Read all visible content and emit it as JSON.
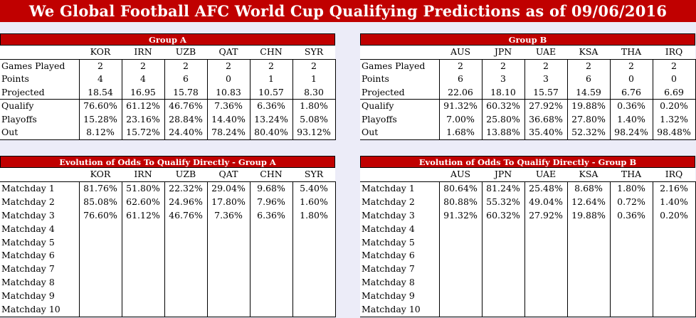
{
  "title": "We Global Football AFC World Cup Qualifying Predictions as of 09/06/2016",
  "groupA": {
    "header": "Group A",
    "teams": [
      "KOR",
      "IRN",
      "UZB",
      "QAT",
      "CHN",
      "SYR"
    ],
    "rows": [
      {
        "label": "Games Played",
        "values": [
          "2",
          "2",
          "2",
          "2",
          "2",
          "2"
        ]
      },
      {
        "label": "Points",
        "values": [
          "4",
          "4",
          "6",
          "0",
          "1",
          "1"
        ]
      },
      {
        "label": "Projected",
        "values": [
          "18.54",
          "16.95",
          "15.78",
          "10.83",
          "10.57",
          "8.30"
        ]
      },
      {
        "label": "Qualify",
        "values": [
          "76.60%",
          "61.12%",
          "46.76%",
          "7.36%",
          "6.36%",
          "1.80%"
        ]
      },
      {
        "label": "Playoffs",
        "values": [
          "15.28%",
          "23.16%",
          "28.84%",
          "14.40%",
          "13.24%",
          "5.08%"
        ]
      },
      {
        "label": "Out",
        "values": [
          "8.12%",
          "15.72%",
          "24.40%",
          "78.24%",
          "80.40%",
          "93.12%"
        ]
      }
    ]
  },
  "groupB": {
    "header": "Group B",
    "teams": [
      "AUS",
      "JPN",
      "UAE",
      "KSA",
      "THA",
      "IRQ"
    ],
    "rows": [
      {
        "label": "Games Played",
        "values": [
          "2",
          "2",
          "2",
          "2",
          "2",
          "2"
        ]
      },
      {
        "label": "Points",
        "values": [
          "6",
          "3",
          "3",
          "6",
          "0",
          "0"
        ]
      },
      {
        "label": "Projected",
        "values": [
          "22.06",
          "18.10",
          "15.57",
          "14.59",
          "6.76",
          "6.69"
        ]
      },
      {
        "label": "Qualify",
        "values": [
          "91.32%",
          "60.32%",
          "27.92%",
          "19.88%",
          "0.36%",
          "0.20%"
        ]
      },
      {
        "label": "Playoffs",
        "values": [
          "7.00%",
          "25.80%",
          "36.68%",
          "27.80%",
          "1.40%",
          "1.32%"
        ]
      },
      {
        "label": "Out",
        "values": [
          "1.68%",
          "13.88%",
          "35.40%",
          "52.32%",
          "98.24%",
          "98.48%"
        ]
      }
    ]
  },
  "evoA": {
    "header": "Evolution of Odds To Qualify Directly - Group A",
    "teams": [
      "KOR",
      "IRN",
      "UZB",
      "QAT",
      "CHN",
      "SYR"
    ],
    "rows": [
      {
        "label": "Matchday 1",
        "values": [
          "81.76%",
          "51.80%",
          "22.32%",
          "29.04%",
          "9.68%",
          "5.40%"
        ]
      },
      {
        "label": "Matchday 2",
        "values": [
          "85.08%",
          "62.60%",
          "24.96%",
          "17.80%",
          "7.96%",
          "1.60%"
        ]
      },
      {
        "label": "Matchday 3",
        "values": [
          "76.60%",
          "61.12%",
          "46.76%",
          "7.36%",
          "6.36%",
          "1.80%"
        ]
      },
      {
        "label": "Matchday 4",
        "values": [
          "",
          "",
          "",
          "",
          "",
          ""
        ]
      },
      {
        "label": "Matchday 5",
        "values": [
          "",
          "",
          "",
          "",
          "",
          ""
        ]
      },
      {
        "label": "Matchday 6",
        "values": [
          "",
          "",
          "",
          "",
          "",
          ""
        ]
      },
      {
        "label": "Matchday 7",
        "values": [
          "",
          "",
          "",
          "",
          "",
          ""
        ]
      },
      {
        "label": "Matchday 8",
        "values": [
          "",
          "",
          "",
          "",
          "",
          ""
        ]
      },
      {
        "label": "Matchday 9",
        "values": [
          "",
          "",
          "",
          "",
          "",
          ""
        ]
      },
      {
        "label": "Matchday 10",
        "values": [
          "",
          "",
          "",
          "",
          "",
          ""
        ]
      }
    ]
  },
  "evoB": {
    "header": "Evolution of Odds To Qualify Directly - Group B",
    "teams": [
      "AUS",
      "JPN",
      "UAE",
      "KSA",
      "THA",
      "IRQ"
    ],
    "rows": [
      {
        "label": "Matchday 1",
        "values": [
          "80.64%",
          "81.24%",
          "25.48%",
          "8.68%",
          "1.80%",
          "2.16%"
        ]
      },
      {
        "label": "Matchday 2",
        "values": [
          "80.88%",
          "55.32%",
          "49.04%",
          "12.64%",
          "0.72%",
          "1.40%"
        ]
      },
      {
        "label": "Matchday 3",
        "values": [
          "91.32%",
          "60.32%",
          "27.92%",
          "19.88%",
          "0.36%",
          "0.20%"
        ]
      },
      {
        "label": "Matchday 4",
        "values": [
          "",
          "",
          "",
          "",
          "",
          ""
        ]
      },
      {
        "label": "Matchday 5",
        "values": [
          "",
          "",
          "",
          "",
          "",
          ""
        ]
      },
      {
        "label": "Matchday 6",
        "values": [
          "",
          "",
          "",
          "",
          "",
          ""
        ]
      },
      {
        "label": "Matchday 7",
        "values": [
          "",
          "",
          "",
          "",
          "",
          ""
        ]
      },
      {
        "label": "Matchday 8",
        "values": [
          "",
          "",
          "",
          "",
          "",
          ""
        ]
      },
      {
        "label": "Matchday 9",
        "values": [
          "",
          "",
          "",
          "",
          "",
          ""
        ]
      },
      {
        "label": "Matchday 10",
        "values": [
          "",
          "",
          "",
          "",
          "",
          ""
        ]
      }
    ]
  }
}
